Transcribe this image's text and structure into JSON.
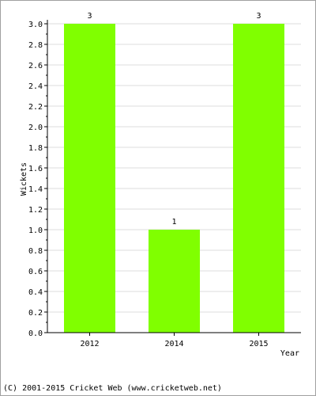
{
  "chart_data": {
    "type": "bar",
    "categories": [
      "2012",
      "2014",
      "2015"
    ],
    "values": [
      3,
      1,
      3
    ],
    "data_labels": [
      "3",
      "1",
      "3"
    ],
    "xlabel": "Year",
    "ylabel": "Wickets",
    "ylim": [
      0,
      3.0
    ],
    "y_ticks": [
      "0.0",
      "0.2",
      "0.4",
      "0.6",
      "0.8",
      "1.0",
      "1.2",
      "1.4",
      "1.6",
      "1.8",
      "2.0",
      "2.2",
      "2.4",
      "2.6",
      "2.8",
      "3.0"
    ],
    "grid": true,
    "bar_color": "#80ff00",
    "grid_color": "#dcdcdc"
  },
  "footer": {
    "copyright": "(C) 2001-2015 Cricket Web (www.cricketweb.net)"
  }
}
